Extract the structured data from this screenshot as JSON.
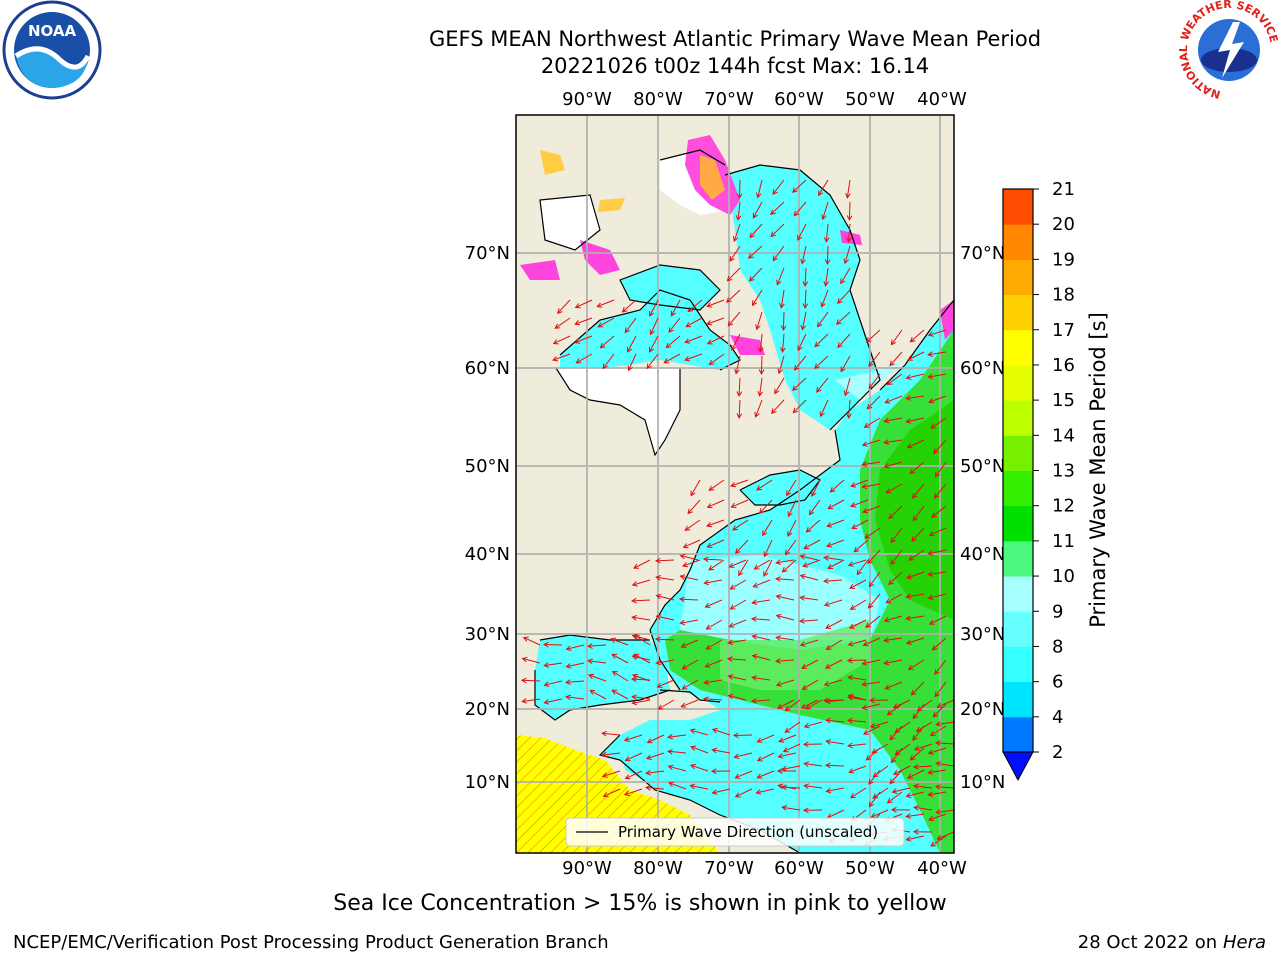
{
  "header": {
    "title_line1": "GEFS MEAN Northwest Atlantic Primary Wave Mean Period",
    "title_line2": "20221026 t00z 144h fcst   Max: 16.14"
  },
  "logos": {
    "noaa": "NOAA",
    "nws": "NATIONAL WEATHER SERVICE"
  },
  "map": {
    "lon_ticks": [
      "90°W",
      "80°W",
      "70°W",
      "60°W",
      "50°W",
      "40°W"
    ],
    "lat_ticks": [
      "70°N",
      "60°N",
      "50°N",
      "40°N",
      "30°N",
      "20°N",
      "10°N"
    ],
    "legend_label": "Primary Wave Direction (unscaled)",
    "ocean_color": "#55ffff",
    "land_color": "#efecdc",
    "ice_color": "#ff44dd",
    "arrow_color": "#e01010"
  },
  "colorbar": {
    "label": "Primary Wave Mean Period [s]",
    "ticks": [
      "2",
      "4",
      "6",
      "8",
      "9",
      "10",
      "11",
      "12",
      "13",
      "14",
      "15",
      "16",
      "17",
      "18",
      "19",
      "20",
      "21"
    ],
    "colors": [
      "#0078ff",
      "#00e5ff",
      "#35ffff",
      "#66ffff",
      "#a8ffff",
      "#4dfa80",
      "#00e000",
      "#33ee00",
      "#77f000",
      "#bbff00",
      "#e6ff00",
      "#ffff00",
      "#ffd000",
      "#ffaa00",
      "#ff8800",
      "#ff4c00",
      "#ff0000"
    ],
    "under_color": "#0010ff"
  },
  "notes": {
    "sea_ice": "Sea Ice Concentration > 15% is shown in pink to yellow"
  },
  "footer": {
    "left": "NCEP/EMC/Verification Post Processing Product Generation Branch",
    "right_date": "28 Oct 2022 on ",
    "right_host": "Hera"
  }
}
